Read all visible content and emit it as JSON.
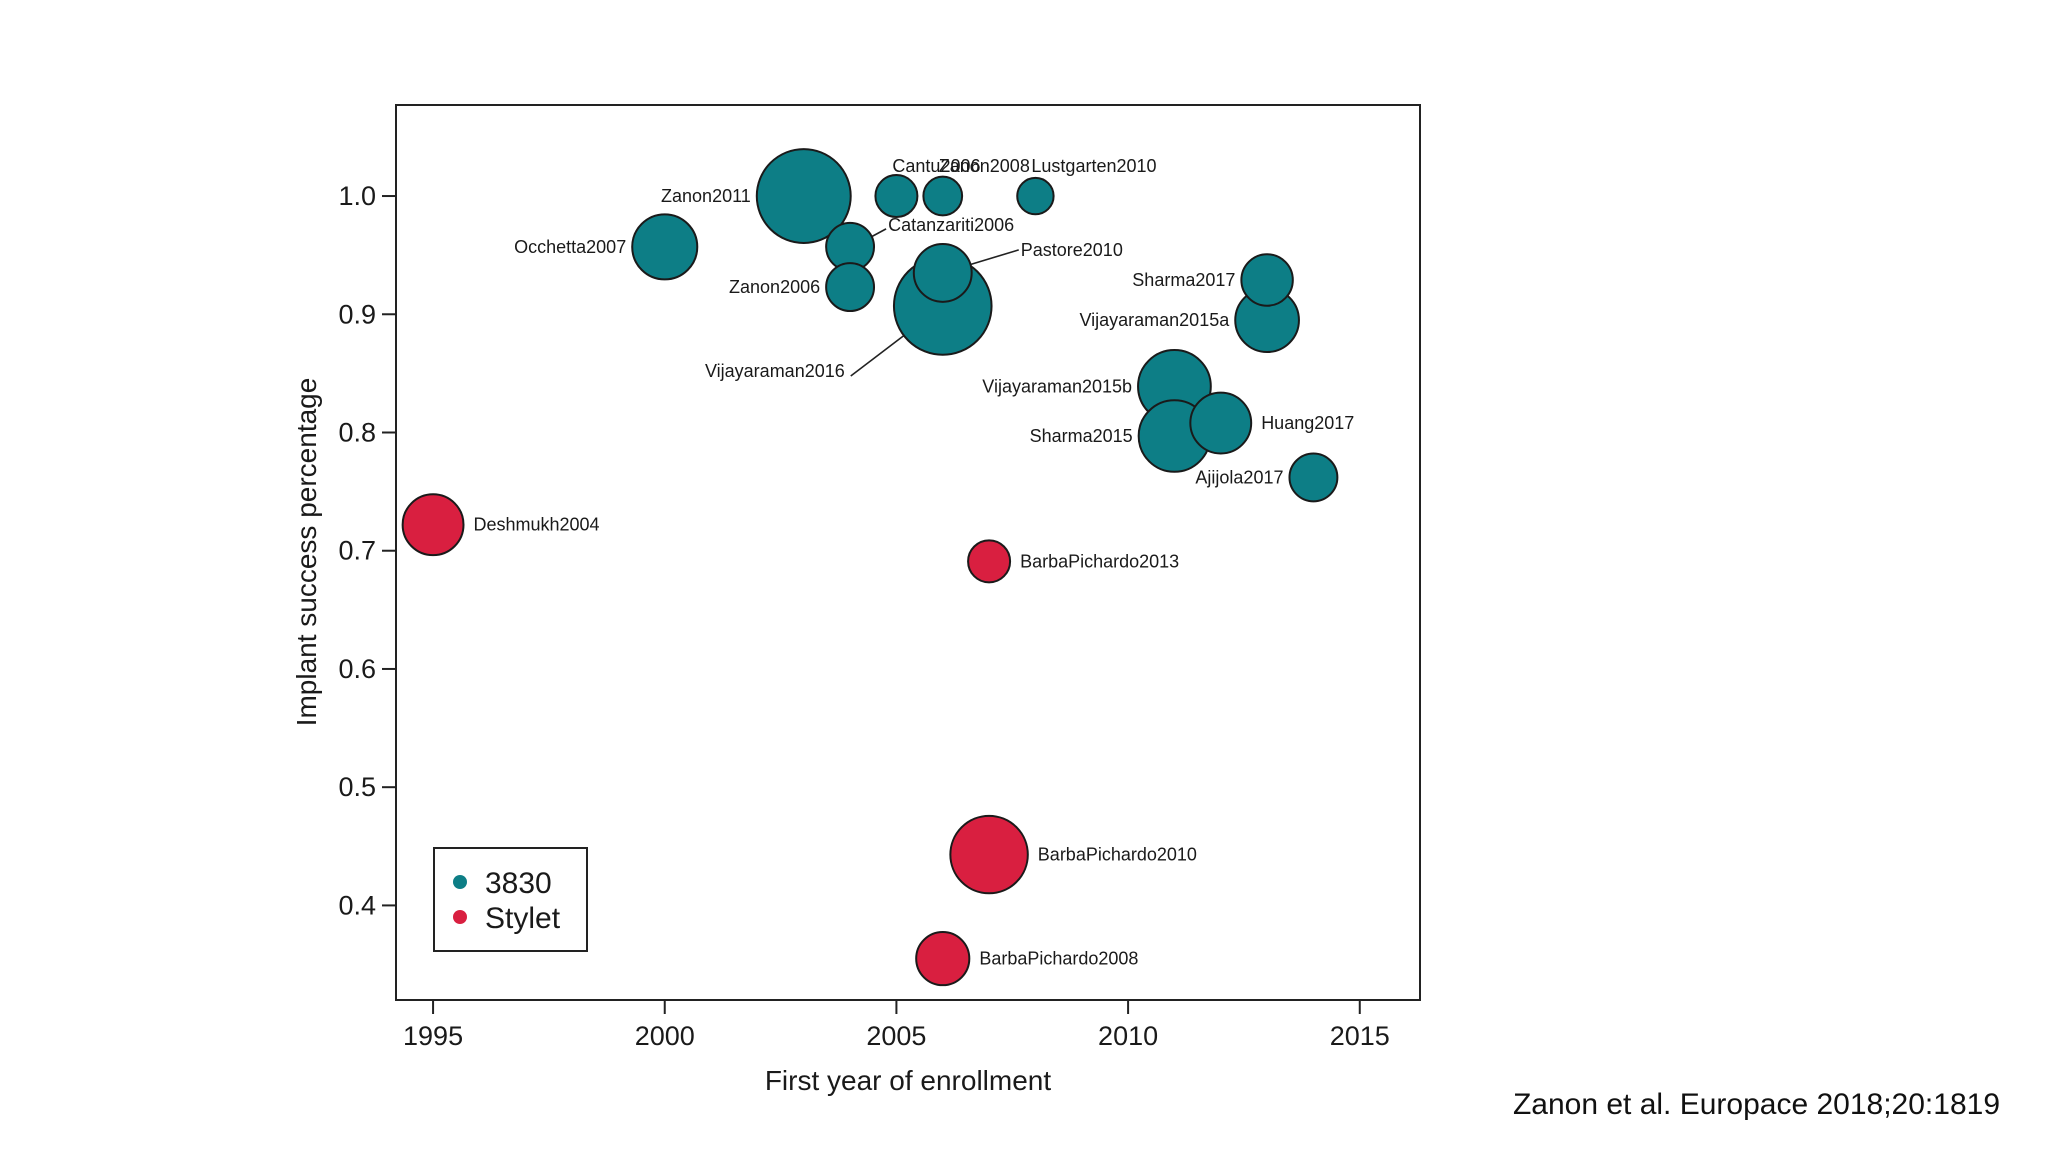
{
  "chart_data": {
    "type": "scatter",
    "bubble": true,
    "xlabel": "First year of enrollment",
    "ylabel": "Implant success percentage",
    "xlim": [
      1994.2,
      2016.3
    ],
    "ylim": [
      0.32,
      1.077
    ],
    "xticks": [
      1995,
      2000,
      2005,
      2010,
      2015
    ],
    "yticks": [
      0.4,
      0.5,
      0.6,
      0.7,
      0.8,
      0.9,
      1.0
    ],
    "ytick_labels": [
      "0.4",
      "0.5",
      "0.6",
      "0.7",
      "0.8",
      "0.9",
      "1.0"
    ],
    "legend": {
      "position": "bottom-left",
      "entries": [
        {
          "name": "3830",
          "color": "#0d7e86"
        },
        {
          "name": "Stylet",
          "color": "#d91f40"
        }
      ]
    },
    "points": [
      {
        "label": "Zanon2011",
        "x": 2003.0,
        "y": 1.0,
        "size": 5.0,
        "group": "3830",
        "label_pos": "left"
      },
      {
        "label": "Cantu2006",
        "x": 2005.0,
        "y": 1.0,
        "size": 1.0,
        "group": "3830",
        "label_pos": "above-right"
      },
      {
        "label": "Zanon2008",
        "x": 2006.0,
        "y": 1.0,
        "size": 0.85,
        "group": "3830",
        "label_pos": "above-right"
      },
      {
        "label": "Lustgarten2010",
        "x": 2008.0,
        "y": 1.0,
        "size": 0.75,
        "group": "3830",
        "label_pos": "above-right"
      },
      {
        "label": "Occhetta2007",
        "x": 2000.0,
        "y": 0.957,
        "size": 2.4,
        "group": "3830",
        "label_pos": "left"
      },
      {
        "label": "Catanzariti2006",
        "x": 2004.0,
        "y": 0.957,
        "size": 1.3,
        "group": "3830",
        "label_pos": "leader"
      },
      {
        "label": "Zanon2006",
        "x": 2004.0,
        "y": 0.923,
        "size": 1.3,
        "group": "3830",
        "label_pos": "left"
      },
      {
        "label": "Pastore2010",
        "x": 2006.0,
        "y": 0.935,
        "size": 1.9,
        "group": "3830",
        "label_pos": "leader"
      },
      {
        "label": "Vijayaraman2016",
        "x": 2006.0,
        "y": 0.907,
        "size": 5.4,
        "group": "3830",
        "label_pos": "leader"
      },
      {
        "label": "Sharma2017",
        "x": 2013.0,
        "y": 0.929,
        "size": 1.5,
        "group": "3830",
        "label_pos": "left"
      },
      {
        "label": "Vijayaraman2015a",
        "x": 2013.0,
        "y": 0.895,
        "size": 2.3,
        "group": "3830",
        "label_pos": "left"
      },
      {
        "label": "Vijayaraman2015b",
        "x": 2011.0,
        "y": 0.839,
        "size": 3.0,
        "group": "3830",
        "label_pos": "left"
      },
      {
        "label": "Huang2017",
        "x": 2012.0,
        "y": 0.808,
        "size": 2.1,
        "group": "3830",
        "label_pos": "right"
      },
      {
        "label": "Sharma2015",
        "x": 2011.0,
        "y": 0.797,
        "size": 2.9,
        "group": "3830",
        "label_pos": "left"
      },
      {
        "label": "Ajijola2017",
        "x": 2014.0,
        "y": 0.762,
        "size": 1.3,
        "group": "3830",
        "label_pos": "left"
      },
      {
        "label": "Deshmukh2004",
        "x": 1995.0,
        "y": 0.722,
        "size": 2.1,
        "group": "Stylet",
        "label_pos": "right"
      },
      {
        "label": "BarbaPichardo2013",
        "x": 2007.0,
        "y": 0.691,
        "size": 1.0,
        "group": "Stylet",
        "label_pos": "right"
      },
      {
        "label": "BarbaPichardo2010",
        "x": 2007.0,
        "y": 0.443,
        "size": 3.4,
        "group": "Stylet",
        "label_pos": "right"
      },
      {
        "label": "BarbaPichardo2008",
        "x": 2006.0,
        "y": 0.355,
        "size": 1.6,
        "group": "Stylet",
        "label_pos": "right"
      }
    ]
  },
  "citation": "Zanon et al. Europace 2018;20:1819"
}
